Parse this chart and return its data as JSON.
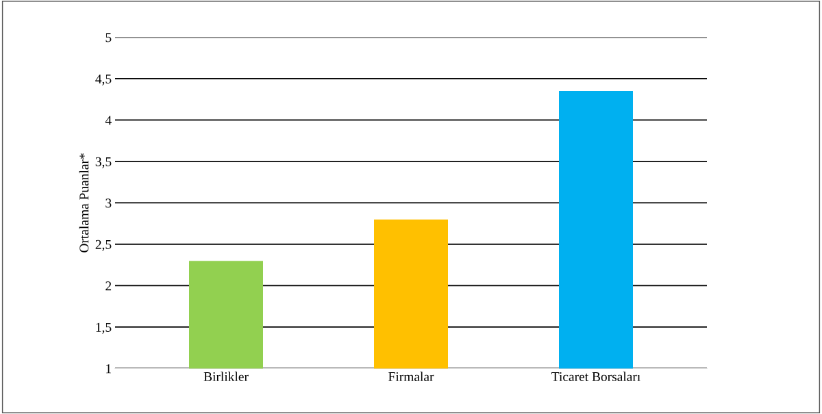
{
  "chart_data": {
    "type": "bar",
    "ylabel": "Ortalama Puanlar*",
    "categories": [
      "Birlikler",
      "Firmalar",
      "Ticaret Borsaları"
    ],
    "values": [
      2.3,
      2.8,
      4.35
    ],
    "colors": [
      "#92d050",
      "#ffc000",
      "#00b0f0"
    ],
    "ylim": [
      1,
      5
    ],
    "yticks": [
      1,
      {
        "value": 1.5,
        "label": "1,5"
      },
      2,
      {
        "value": 2.5,
        "label": "2,5"
      },
      3,
      {
        "value": 3.5,
        "label": "3,5"
      },
      4,
      {
        "value": 4.5,
        "label": "4,5"
      },
      5
    ],
    "grid": "y"
  }
}
